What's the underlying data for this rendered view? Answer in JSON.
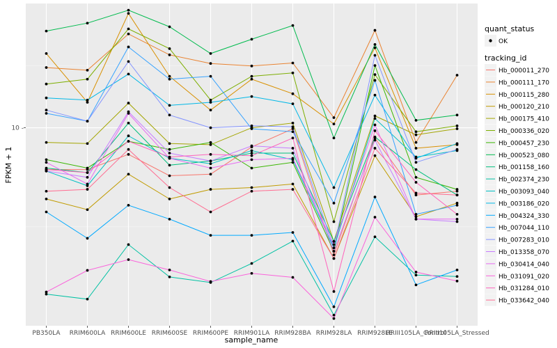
{
  "chart_data": {
    "type": "line",
    "xlabel": "sample_name",
    "ylabel": "FPKM + 1",
    "y_scale": "log10",
    "ylim": [
      1.3,
      36
    ],
    "y_ticks": [
      10
    ],
    "y_tick_labels": [
      "10 -"
    ],
    "grid": true,
    "legend_position": "right",
    "categories": [
      "PB350LA",
      "RRIM600LA",
      "RRIM600LE",
      "RRIM600SE",
      "RRIM600PE",
      "RRIM901LA",
      "RRIM928BA",
      "RRIM928LA",
      "RRIM928LE",
      "RRIII105LA_Control",
      "RRIII105LA_Stressed"
    ],
    "tick_labels": [
      "PB350LA",
      "RRIM600LA",
      "RRIM600LE",
      "RRIM600SE",
      "RRIM600PE",
      "RRIM901LA",
      "RRIM928BA",
      "RRIM928LA",
      "RRIM928LE",
      "RRIII105LA_Control",
      "RRIII105LA_Stressed"
    ],
    "shape_legend": {
      "title": "quant_status",
      "entries": [
        "OK"
      ]
    },
    "color_legend_title": "tracking_id",
    "series": [
      {
        "name": "Hb_000011_270",
        "color": "#F8766D",
        "values": [
          6.5,
          6.5,
          7.6,
          6.1,
          6.2,
          8.2,
          9.9,
          2.7,
          9.0,
          5.0,
          5.2
        ]
      },
      {
        "name": "Hb_000111_170",
        "color": "#EA8331",
        "values": [
          18.6,
          18.1,
          26.3,
          21.2,
          19.4,
          18.9,
          19.5,
          11.1,
          27.3,
          8.6,
          17.2
        ]
      },
      {
        "name": "Hb_000115_280",
        "color": "#D89000",
        "values": [
          21.5,
          13.0,
          32.5,
          17.0,
          12.0,
          16.5,
          14.2,
          10.4,
          22.8,
          8.1,
          8.4
        ]
      },
      {
        "name": "Hb_000120_210",
        "color": "#C09B00",
        "values": [
          4.8,
          4.3,
          6.2,
          4.8,
          5.3,
          5.4,
          5.6,
          2.6,
          7.5,
          4.0,
          4.6
        ]
      },
      {
        "name": "Hb_000175_410",
        "color": "#A3A500",
        "values": [
          8.6,
          8.5,
          12.9,
          8.5,
          8.4,
          10.0,
          10.5,
          3.1,
          11.3,
          9.3,
          9.9
        ]
      },
      {
        "name": "Hb_000336_020",
        "color": "#7CAE00",
        "values": [
          15.7,
          16.5,
          27.7,
          22.6,
          13.3,
          17.0,
          17.6,
          3.8,
          17.3,
          9.6,
          10.2
        ]
      },
      {
        "name": "Hb_000457_230",
        "color": "#39B600",
        "values": [
          7.2,
          6.6,
          8.7,
          8.0,
          8.6,
          6.6,
          7.0,
          2.8,
          19.0,
          6.0,
          5.3
        ]
      },
      {
        "name": "Hb_000523_080",
        "color": "#00BB4E",
        "values": [
          27.1,
          29.4,
          33.6,
          28.3,
          21.5,
          24.9,
          28.7,
          9.0,
          23.6,
          10.8,
          11.4
        ]
      },
      {
        "name": "Hb_001158_160",
        "color": "#00BF7D",
        "values": [
          6.6,
          6.3,
          10.5,
          6.8,
          7.1,
          7.7,
          7.7,
          3.1,
          9.1,
          6.5,
          5.0
        ]
      },
      {
        "name": "Hb_002374_230",
        "color": "#00C1A3",
        "values": [
          1.8,
          1.71,
          3.0,
          2.15,
          2.03,
          2.47,
          3.11,
          1.45,
          3.25,
          2.19,
          2.16
        ]
      },
      {
        "name": "Hb_003093_040",
        "color": "#00BFC4",
        "values": [
          6.4,
          5.5,
          9.2,
          7.3,
          6.9,
          7.9,
          7.2,
          2.9,
          11.0,
          7.4,
          7.9
        ]
      },
      {
        "name": "Hb_003186_020",
        "color": "#00B8E7",
        "values": [
          13.6,
          13.3,
          17.4,
          12.6,
          13.0,
          13.8,
          12.8,
          5.4,
          14.0,
          7.3,
          8.5
        ]
      },
      {
        "name": "Hb_004324_330",
        "color": "#00A9FF",
        "values": [
          4.2,
          3.2,
          4.5,
          3.9,
          3.3,
          3.3,
          3.4,
          1.58,
          4.9,
          1.98,
          2.31
        ]
      },
      {
        "name": "Hb_007044_110",
        "color": "#35A2FF",
        "values": [
          11.6,
          10.7,
          23.0,
          16.5,
          17.0,
          9.9,
          9.6,
          4.6,
          16.3,
          4.1,
          4.5
        ]
      },
      {
        "name": "Hb_007283_010",
        "color": "#8494FF",
        "values": [
          12.0,
          10.7,
          19.8,
          11.4,
          10.0,
          10.2,
          10.1,
          2.9,
          21.1,
          7.0,
          8.0
        ]
      },
      {
        "name": "Hb_013358_070",
        "color": "#C77CFF",
        "values": [
          6.4,
          6.0,
          11.8,
          7.7,
          7.1,
          8.3,
          8.1,
          2.8,
          8.8,
          3.9,
          3.8
        ]
      },
      {
        "name": "Hb_030414_040",
        "color": "#E76BF3",
        "values": [
          7.0,
          5.6,
          11.6,
          7.3,
          6.6,
          7.2,
          7.3,
          3.0,
          10.3,
          3.9,
          3.9
        ]
      },
      {
        "name": "Hb_031091_020",
        "color": "#FA62DB",
        "values": [
          1.84,
          2.3,
          2.57,
          2.31,
          2.05,
          2.23,
          2.14,
          1.4,
          3.98,
          2.26,
          2.06
        ]
      },
      {
        "name": "Hb_031284_010",
        "color": "#FF62BC",
        "values": [
          6.5,
          6.3,
          8.7,
          7.4,
          7.6,
          7.5,
          9.0,
          1.85,
          9.7,
          5.7,
          4.1
        ]
      },
      {
        "name": "Hb_033642_040",
        "color": "#FF6C91",
        "values": [
          5.2,
          5.3,
          8.0,
          5.4,
          4.2,
          5.2,
          5.3,
          2.6,
          8.1,
          5.1,
          5.0
        ]
      }
    ]
  }
}
